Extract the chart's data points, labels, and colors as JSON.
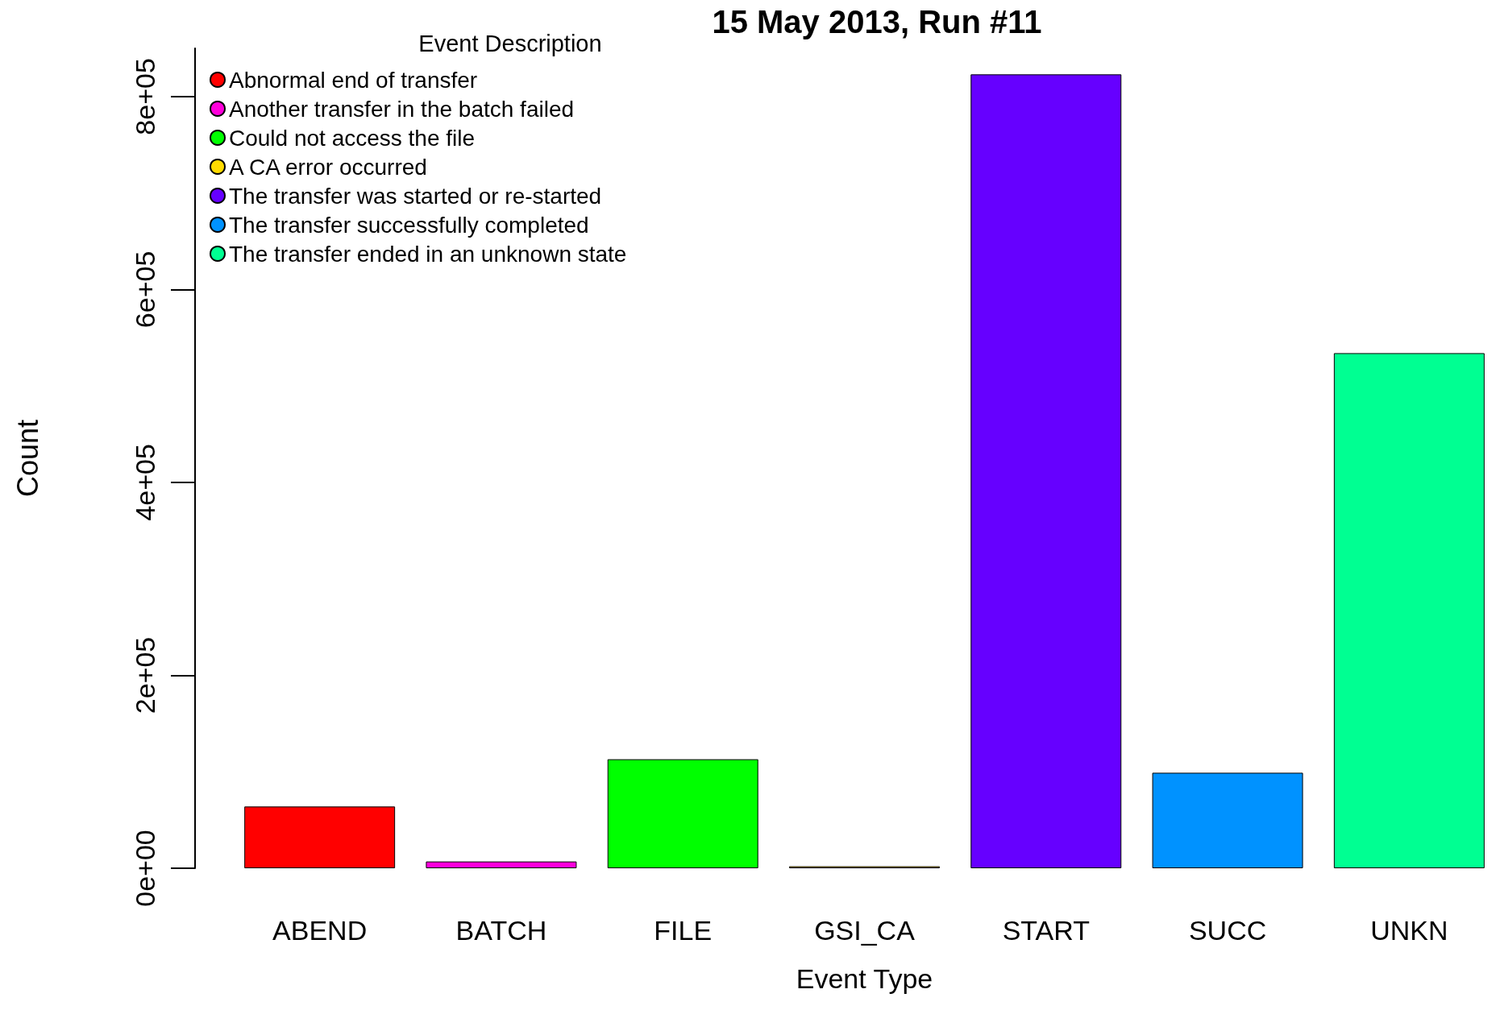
{
  "chart_data": {
    "type": "bar",
    "title": "15 May 2013, Run #11",
    "xlabel": "Event Type",
    "ylabel": "Count",
    "legend_title": "Event Description",
    "categories": [
      "ABEND",
      "BATCH",
      "FILE",
      "GSI_CA",
      "START",
      "SUCC",
      "UNKN"
    ],
    "stacked": true,
    "series": [
      {
        "name": "Abnormal end of transfer",
        "color": "#ff0000",
        "values": [
          64000,
          null,
          null,
          null,
          null,
          null,
          null
        ]
      },
      {
        "name": "Another transfer in the batch failed",
        "color": "#ff00db",
        "values": [
          null,
          7000,
          null,
          null,
          null,
          null,
          null
        ]
      },
      {
        "name": "Could not access the file",
        "color": "#00ff00",
        "values": [
          null,
          null,
          113000,
          null,
          null,
          null,
          null
        ]
      },
      {
        "name": "A CA error occurred",
        "color": "#ffdb00",
        "values": [
          null,
          null,
          null,
          2000,
          null,
          null,
          null
        ]
      },
      {
        "name": "The transfer was started or re-started",
        "color": "#6600ff",
        "values": [
          null,
          null,
          null,
          null,
          823000,
          null,
          null
        ]
      },
      {
        "name": "The transfer successfully completed",
        "color": "#0092ff",
        "values": [
          null,
          null,
          null,
          null,
          null,
          99000,
          null
        ]
      },
      {
        "name": "The transfer ended in an unknown state",
        "color": "#00ff92",
        "values": [
          null,
          null,
          null,
          null,
          null,
          null,
          534000
        ]
      }
    ],
    "ylim": [
      0,
      850000
    ],
    "yticks": [
      {
        "value": 0,
        "label": "0e+00"
      },
      {
        "value": 200000,
        "label": "2e+05"
      },
      {
        "value": 400000,
        "label": "4e+05"
      },
      {
        "value": 600000,
        "label": "6e+05"
      },
      {
        "value": 800000,
        "label": "8e+05"
      }
    ],
    "grid": false,
    "legend": "top left",
    "marker": "circle"
  }
}
